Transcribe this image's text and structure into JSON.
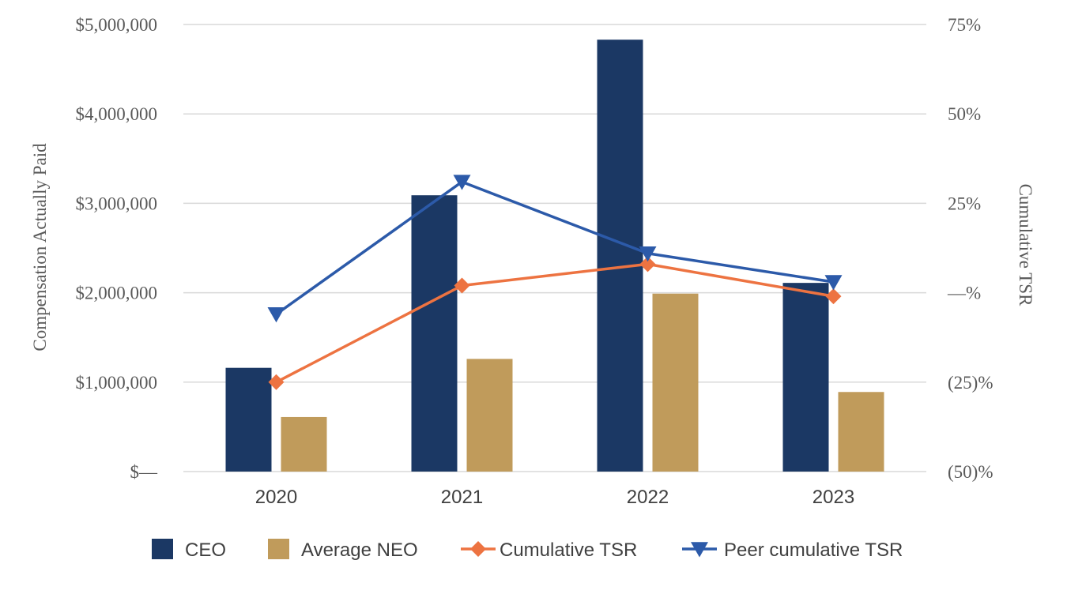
{
  "chart_data": {
    "type": "bar",
    "categories": [
      "2020",
      "2021",
      "2022",
      "2023"
    ],
    "series": [
      {
        "name": "CEO",
        "kind": "bar",
        "axis": "left",
        "values": [
          1160000,
          3090000,
          4830000,
          2110000
        ]
      },
      {
        "name": "Average NEO",
        "kind": "bar",
        "axis": "left",
        "values": [
          610000,
          1260000,
          1990000,
          890000
        ]
      },
      {
        "name": "Cumulative TSR",
        "kind": "line",
        "marker": "diamond",
        "axis": "right",
        "values": [
          -25,
          2,
          8,
          -1
        ]
      },
      {
        "name": "Peer cumulative TSR",
        "kind": "line",
        "marker": "triangle-down",
        "axis": "right",
        "values": [
          -6,
          31,
          11,
          3
        ]
      }
    ],
    "ylabel": "Compensation Actually Paid",
    "y2label": "Cumulative TSR",
    "ylim": [
      0,
      5000000
    ],
    "y2lim": [
      -50,
      75
    ],
    "yticks": [
      "$—",
      "$1,000,000",
      "$2,000,000",
      "$3,000,000",
      "$4,000,000",
      "$5,000,000"
    ],
    "y2ticks": [
      "(50)%",
      "(25)%",
      "—%",
      "25%",
      "50%",
      "75%"
    ],
    "grid": true,
    "legend_position": "bottom",
    "colors": {
      "CEO": "#1b3864",
      "Average NEO": "#c09b5b",
      "Cumulative TSR": "#ed7341",
      "Peer cumulative TSR": "#2c5aa9"
    }
  }
}
